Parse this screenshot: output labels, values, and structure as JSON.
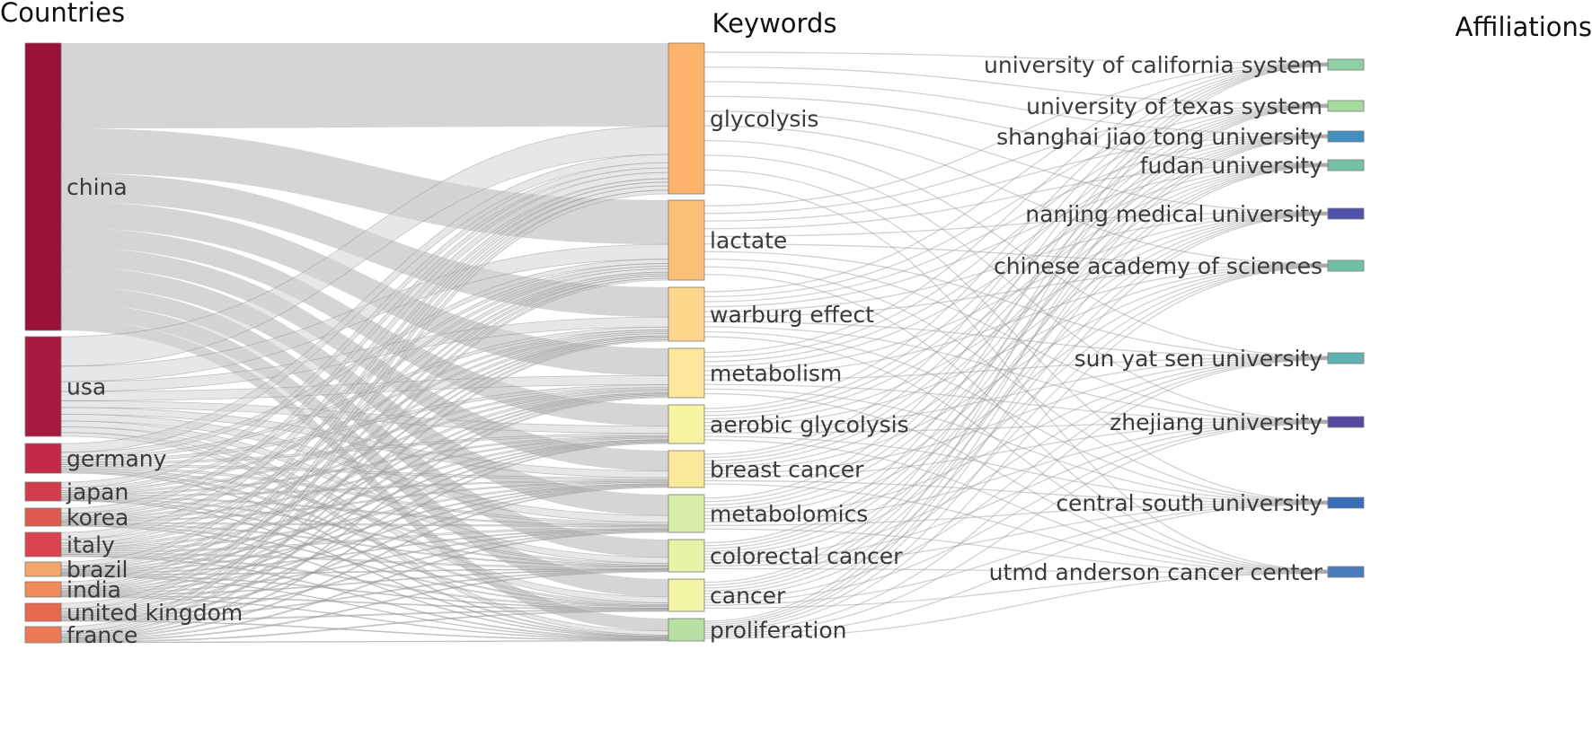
{
  "columns": [
    "Countries",
    "Keywords",
    "Affiliations"
  ],
  "countries": [
    {
      "name": "china",
      "color": "#9b1238",
      "value": 40
    },
    {
      "name": "usa",
      "color": "#a8193f",
      "value": 13.5
    },
    {
      "name": "germany",
      "color": "#c22a48",
      "value": 4
    },
    {
      "name": "japan",
      "color": "#d03d4c",
      "value": 2.5
    },
    {
      "name": "korea",
      "color": "#e05b4f",
      "value": 2.2
    },
    {
      "name": "italy",
      "color": "#d9424e",
      "value": 3
    },
    {
      "name": "brazil",
      "color": "#f3a66b",
      "value": 1.6
    },
    {
      "name": "india",
      "color": "#f08c5c",
      "value": 1.8
    },
    {
      "name": "united kingdom",
      "color": "#e8684e",
      "value": 2.1
    },
    {
      "name": "france",
      "color": "#ec7a55",
      "value": 1.8
    }
  ],
  "keywords": [
    {
      "name": "glycolysis",
      "color": "#fbb26a",
      "value": 21
    },
    {
      "name": "lactate",
      "color": "#fbbf76",
      "value": 11
    },
    {
      "name": "warburg effect",
      "color": "#fdd68c",
      "value": 7
    },
    {
      "name": "metabolism",
      "color": "#fde79c",
      "value": 6.5
    },
    {
      "name": "aerobic glycolysis",
      "color": "#f6f4a1",
      "value": 4.8
    },
    {
      "name": "breast cancer",
      "color": "#fce89a",
      "value": 4.8
    },
    {
      "name": "metabolomics",
      "color": "#d7eeaa",
      "value": 4.8
    },
    {
      "name": "colorectal cancer",
      "color": "#e6f3a4",
      "value": 4.2
    },
    {
      "name": "cancer",
      "color": "#f0f6a6",
      "value": 4.0
    },
    {
      "name": "proliferation",
      "color": "#b6e1a2",
      "value": 2.7
    }
  ],
  "affiliations": [
    {
      "name": "university of california system",
      "color": "#8fd1a4"
    },
    {
      "name": "university of texas system",
      "color": "#a6d99c"
    },
    {
      "name": "shanghai jiao tong university",
      "color": "#3f8fc0"
    },
    {
      "name": "fudan university",
      "color": "#73c3a3"
    },
    {
      "name": "nanjing medical university",
      "color": "#4f54a8"
    },
    {
      "name": "chinese academy of sciences",
      "color": "#70c0a8"
    },
    {
      "name": "sun yat sen university",
      "color": "#5fb2b4"
    },
    {
      "name": "zhejiang university",
      "color": "#5849a0"
    },
    {
      "name": "central south university",
      "color": "#3a6eb7"
    },
    {
      "name": "utmd anderson cancer center",
      "color": "#4b7cbb"
    }
  ],
  "link_colors": {
    "country_keyword": "#d3d3d3",
    "keyword_affiliation": "#9a9a9a"
  }
}
